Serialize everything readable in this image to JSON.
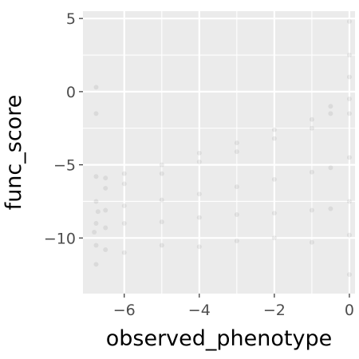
{
  "chart_data": {
    "type": "scatter",
    "xlabel": "observed_phenotype",
    "ylabel": "func_score",
    "xlim": [
      -7.1,
      0.15
    ],
    "ylim": [
      -13.8,
      5.5
    ],
    "x_ticks": [
      -6,
      -4,
      -2,
      0
    ],
    "x_tick_labels": [
      "−6",
      "−4",
      "−2",
      "0"
    ],
    "y_ticks": [
      -10,
      -5,
      0,
      5
    ],
    "y_tick_labels": [
      "−10",
      "−5",
      "0",
      "5"
    ],
    "grid": true,
    "background": "#ebebeb",
    "grid_color": "#ffffff",
    "point_color": "#000000",
    "point_alpha": 0.07,
    "legend": "none",
    "series": [
      {
        "points": [
          [
            -6.75,
            -9.0
          ],
          [
            -6.75,
            -7.5
          ],
          [
            -6.75,
            -10.5
          ],
          [
            -6.75,
            -5.8
          ],
          [
            -6.75,
            -11.8
          ],
          [
            -6.75,
            -1.5
          ],
          [
            -6.75,
            0.3
          ],
          [
            -6.7,
            -8.2
          ],
          [
            -6.8,
            -9.6
          ],
          [
            -6.5,
            -5.9
          ],
          [
            -6.5,
            -6.6
          ],
          [
            -6.5,
            -9.3
          ],
          [
            -6.5,
            -8.1
          ],
          [
            -6.5,
            -10.8
          ],
          [
            -6.0,
            -5.6
          ],
          [
            -6.0,
            -6.3
          ],
          [
            -6.0,
            -9.0
          ],
          [
            -6.0,
            -7.8
          ],
          [
            -6.0,
            -11.0
          ],
          [
            -5.0,
            -5.0
          ],
          [
            -5.0,
            -5.6
          ],
          [
            -5.0,
            -8.9
          ],
          [
            -5.0,
            -7.4
          ],
          [
            -5.0,
            -10.5
          ],
          [
            -4.0,
            -4.2
          ],
          [
            -4.0,
            -4.8
          ],
          [
            -4.0,
            -8.6
          ],
          [
            -4.0,
            -7.0
          ],
          [
            -4.0,
            -10.6
          ],
          [
            -3.0,
            -3.5
          ],
          [
            -3.0,
            -4.1
          ],
          [
            -3.0,
            -8.4
          ],
          [
            -3.0,
            -6.5
          ],
          [
            -3.0,
            -10.2
          ],
          [
            -2.0,
            -2.6
          ],
          [
            -2.0,
            -3.2
          ],
          [
            -2.0,
            -8.3
          ],
          [
            -2.0,
            -6.0
          ],
          [
            -2.0,
            -10.0
          ],
          [
            -1.0,
            -1.9
          ],
          [
            -1.0,
            -2.5
          ],
          [
            -1.0,
            -8.1
          ],
          [
            -1.0,
            -5.5
          ],
          [
            -1.0,
            -10.3
          ],
          [
            -0.5,
            -1.5
          ],
          [
            -0.5,
            -1.0
          ],
          [
            -0.5,
            -8.0
          ],
          [
            -0.5,
            -5.2
          ],
          [
            0.0,
            1.0
          ],
          [
            0.0,
            -0.5
          ],
          [
            0.0,
            -1.5
          ],
          [
            0.0,
            2.5
          ],
          [
            0.0,
            -4.5
          ],
          [
            0.0,
            -7.5
          ],
          [
            0.0,
            -9.8
          ],
          [
            0.0,
            -12.5
          ],
          [
            0.0,
            4.8
          ]
        ]
      }
    ]
  }
}
